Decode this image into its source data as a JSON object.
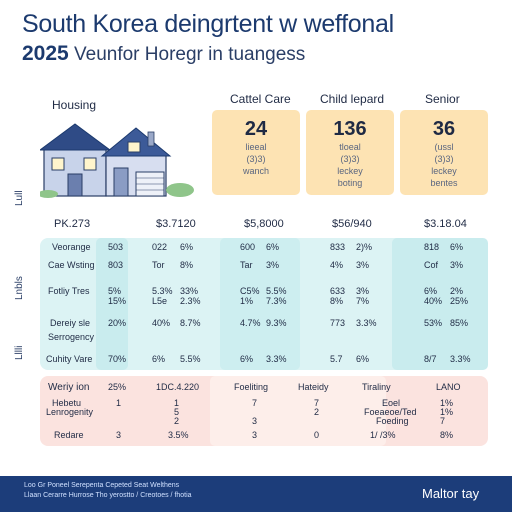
{
  "title": "South Korea deingrtent w weffonal",
  "subtitle_year": "2025",
  "subtitle_rest": "Veunfor Horegr in tuangess",
  "housing_label": "Housing",
  "columns": [
    "Cattel Care",
    "Child lepard",
    "Senior"
  ],
  "cards": [
    {
      "value": "24",
      "l1": "lieeal",
      "l2": "(3)3)",
      "l3": "wanch",
      "color": "#fde3b3"
    },
    {
      "value": "136",
      "l1": "tloeal",
      "l2": "(3)3)",
      "l3": "leckey",
      "l4": "boting",
      "color": "#fde3b3"
    },
    {
      "value": "36",
      "l1": "(ussl",
      "l2": "(3)3)",
      "l3": "leckey",
      "l4": "bentes",
      "color": "#fde3b3"
    }
  ],
  "side_marks": [
    "Lull",
    "Lnbls",
    "Lllli"
  ],
  "price_row": [
    "PK.273",
    "$3.7120",
    "$5,8000",
    "$56/940",
    "$3.18.04"
  ],
  "blue_rows": [
    {
      "label": "Veorange",
      "c": [
        "503",
        "022",
        "6%",
        "600",
        "6%",
        "833",
        "2)%",
        "818",
        "6%"
      ]
    },
    {
      "label": "Cae Wsting",
      "c": [
        "803",
        "Tor",
        "8%",
        "Tar",
        "3%",
        "4%",
        "3%",
        "Cof",
        "3%"
      ]
    },
    {
      "label": "Fotliy Tres",
      "c": [
        "5%",
        "5.3%",
        "33%",
        "C5%",
        "5.5%",
        "633",
        "3%",
        "6%",
        "2%"
      ]
    },
    {
      "label": "",
      "c": [
        "15%",
        "L5e",
        "2.3%",
        "1%",
        "7.3%",
        "8%",
        "7%",
        "40%",
        "25%"
      ]
    },
    {
      "label": "Dereiy sle",
      "c": [
        "20%",
        "40%",
        "8.7%",
        "4.7%",
        "9.3%",
        "773",
        "3.3%",
        "53%",
        "85%"
      ]
    },
    {
      "label": "Serrogency",
      "c": [
        "",
        "",
        "",
        "",
        "",
        "",
        "",
        "",
        ""
      ]
    },
    {
      "label": "Cuhity Vare",
      "c": [
        "70%",
        "6%",
        "5.5%",
        "6%",
        "3.3%",
        "5.7",
        "6%",
        "8/7",
        "3.3%"
      ]
    }
  ],
  "pink_head": [
    "Weriy ion",
    "25%",
    "1DC.4.220",
    "Foeliting",
    "Hateidy",
    "Tiraliny",
    "LANO"
  ],
  "pink_rows": [
    {
      "label": "Hebetu",
      "c": [
        "1",
        "1",
        "7",
        "7",
        "Eoel",
        "1%"
      ]
    },
    {
      "label": "Lenrogenity",
      "c": [
        "",
        "5",
        "",
        "2",
        "Foeaeoe/Ted",
        "1%"
      ]
    },
    {
      "label": "",
      "c": [
        "",
        "2",
        "3",
        "",
        "Foeding",
        "7"
      ]
    },
    {
      "label": "Redare",
      "c": [
        "3",
        "3.5%",
        "3",
        "0",
        "1/ /3%",
        "8%"
      ]
    }
  ],
  "footer_line1": "Loo Gr Poneel Serepenta Cepeted Seat Welthens",
  "footer_line2": "Llaan Cerarre Hurrose Tho yerostto / Creotoes / fhotia",
  "footer_brand": "Maltor tay"
}
